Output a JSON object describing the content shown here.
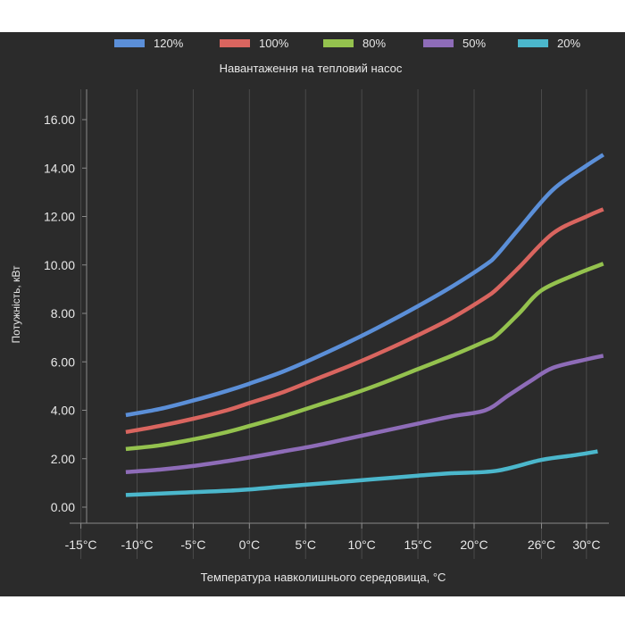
{
  "chart_data": {
    "type": "line",
    "title": "Навантаження на тепловий насос",
    "xlabel": "Температура навколишнього середовища, °C",
    "ylabel": "Потужність, кВт",
    "x_ticks": [
      {
        "value": -15,
        "label": "-15°C"
      },
      {
        "value": -10,
        "label": "-10°C"
      },
      {
        "value": -5,
        "label": "-5°C"
      },
      {
        "value": 0,
        "label": "0°C"
      },
      {
        "value": 5,
        "label": "5°C"
      },
      {
        "value": 10,
        "label": "10°C"
      },
      {
        "value": 15,
        "label": "15°C"
      },
      {
        "value": 20,
        "label": "20°C"
      },
      {
        "value": 26,
        "label": "26°C"
      },
      {
        "value": 30,
        "label": "30°C"
      }
    ],
    "y_ticks": [
      "0.00",
      "2.00",
      "4.00",
      "6.00",
      "8.00",
      "10.00",
      "12.00",
      "14.00",
      "16.00"
    ],
    "xlim": [
      -16,
      32
    ],
    "ylim": [
      0,
      16
    ],
    "grid": true,
    "legend_position": "top",
    "series": [
      {
        "name": "120%",
        "color": "#5b8fd8",
        "points": [
          [
            -11,
            3.8
          ],
          [
            -8,
            4.05
          ],
          [
            -5,
            4.4
          ],
          [
            -2,
            4.8
          ],
          [
            0,
            5.1
          ],
          [
            3,
            5.6
          ],
          [
            6,
            6.2
          ],
          [
            9,
            6.85
          ],
          [
            12,
            7.55
          ],
          [
            15,
            8.3
          ],
          [
            18,
            9.1
          ],
          [
            21,
            10.0
          ],
          [
            22,
            10.4
          ],
          [
            24,
            11.5
          ],
          [
            27,
            13.1
          ],
          [
            30,
            14.1
          ],
          [
            31.5,
            14.55
          ]
        ]
      },
      {
        "name": "100%",
        "color": "#d9655f",
        "points": [
          [
            -11,
            3.1
          ],
          [
            -8,
            3.35
          ],
          [
            -5,
            3.65
          ],
          [
            -2,
            4.0
          ],
          [
            0,
            4.3
          ],
          [
            3,
            4.75
          ],
          [
            6,
            5.3
          ],
          [
            9,
            5.85
          ],
          [
            12,
            6.45
          ],
          [
            15,
            7.1
          ],
          [
            18,
            7.8
          ],
          [
            21,
            8.65
          ],
          [
            22,
            9.0
          ],
          [
            24,
            9.9
          ],
          [
            27,
            11.3
          ],
          [
            30,
            12.0
          ],
          [
            31.5,
            12.3
          ]
        ]
      },
      {
        "name": "80%",
        "color": "#94c24e",
        "points": [
          [
            -11,
            2.4
          ],
          [
            -8,
            2.55
          ],
          [
            -5,
            2.8
          ],
          [
            -2,
            3.1
          ],
          [
            0,
            3.35
          ],
          [
            3,
            3.75
          ],
          [
            6,
            4.2
          ],
          [
            9,
            4.65
          ],
          [
            12,
            5.15
          ],
          [
            15,
            5.7
          ],
          [
            18,
            6.25
          ],
          [
            21,
            6.85
          ],
          [
            22,
            7.1
          ],
          [
            24,
            8.0
          ],
          [
            26,
            8.95
          ],
          [
            29,
            9.6
          ],
          [
            31.5,
            10.05
          ]
        ]
      },
      {
        "name": "50%",
        "color": "#8e6cb8",
        "points": [
          [
            -11,
            1.45
          ],
          [
            -8,
            1.55
          ],
          [
            -5,
            1.7
          ],
          [
            -2,
            1.9
          ],
          [
            0,
            2.05
          ],
          [
            3,
            2.3
          ],
          [
            6,
            2.55
          ],
          [
            9,
            2.85
          ],
          [
            12,
            3.15
          ],
          [
            15,
            3.45
          ],
          [
            18,
            3.75
          ],
          [
            21,
            4.0
          ],
          [
            23,
            4.6
          ],
          [
            25,
            5.2
          ],
          [
            27,
            5.75
          ],
          [
            30,
            6.1
          ],
          [
            31.5,
            6.25
          ]
        ]
      },
      {
        "name": "20%",
        "color": "#4bb7cc",
        "points": [
          [
            -11,
            0.5
          ],
          [
            -6,
            0.6
          ],
          [
            -1,
            0.7
          ],
          [
            3,
            0.85
          ],
          [
            7,
            1.0
          ],
          [
            11,
            1.15
          ],
          [
            15,
            1.3
          ],
          [
            18,
            1.4
          ],
          [
            22,
            1.5
          ],
          [
            26,
            1.95
          ],
          [
            29,
            2.15
          ],
          [
            31,
            2.3
          ]
        ]
      }
    ]
  }
}
